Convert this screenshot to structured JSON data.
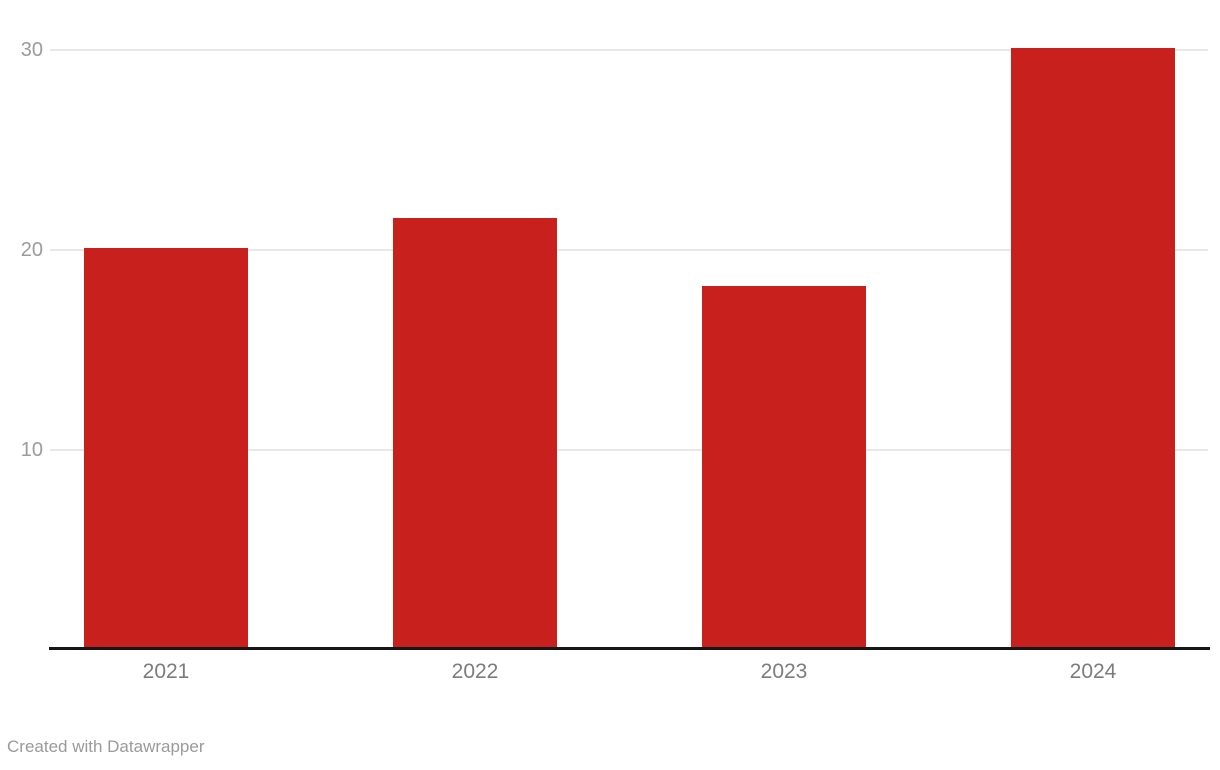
{
  "chart_data": {
    "type": "bar",
    "categories": [
      "2021",
      "2022",
      "2023",
      "2024"
    ],
    "values": [
      20.1,
      21.6,
      18.2,
      30.1
    ],
    "title": "",
    "xlabel": "",
    "ylabel": "",
    "ylim": [
      0,
      30.5
    ],
    "yticks": [
      10,
      20,
      30
    ],
    "grid": true,
    "legend": "none"
  },
  "colors": {
    "bar": "#c8201d",
    "gridline": "#e8e8e8",
    "axis_line": "#161616",
    "y_tick_label": "#9b9b9b",
    "x_tick_label": "#7c7c7c",
    "footer_text": "#9a9a9a",
    "background": "#ffffff"
  },
  "footer": {
    "credit": "Created with Datawrapper"
  }
}
